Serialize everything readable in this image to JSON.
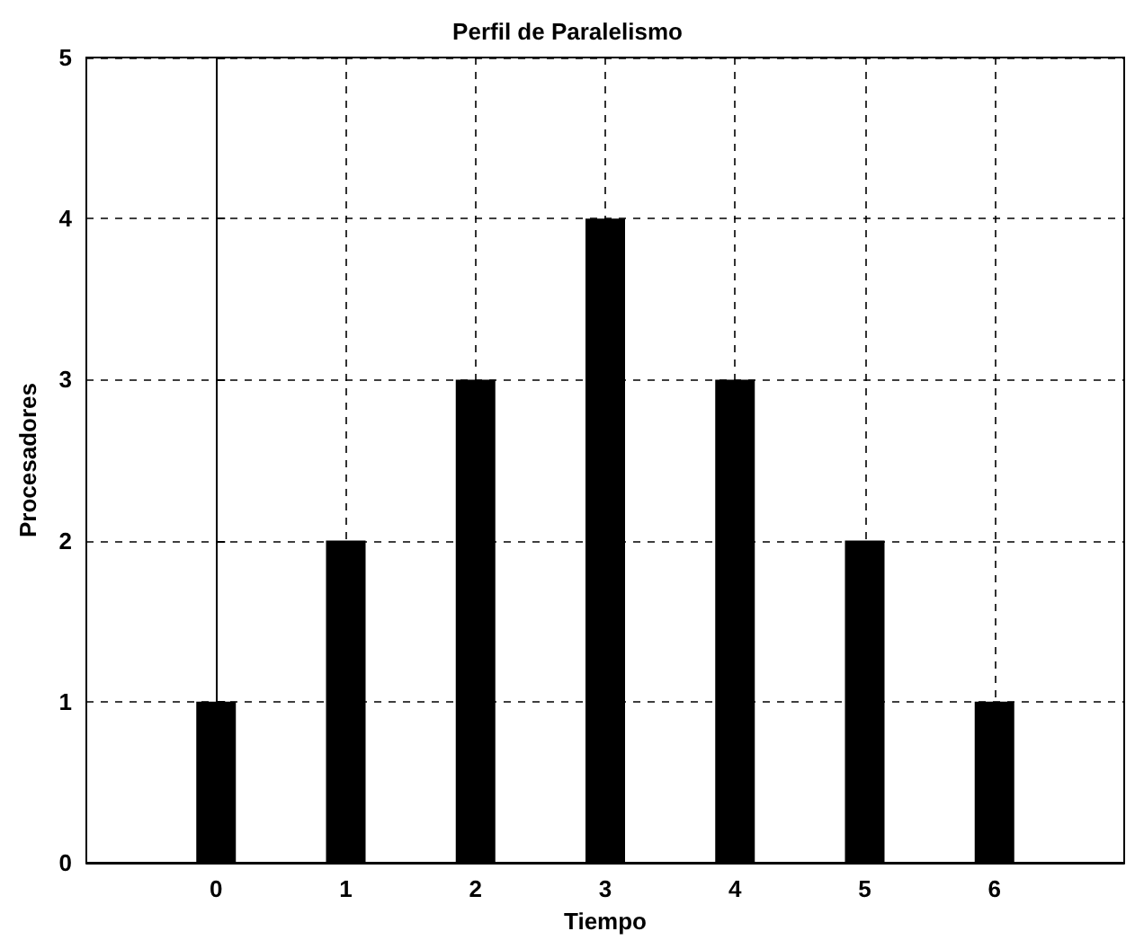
{
  "chart_data": {
    "type": "bar",
    "title": "Perfil de Paralelismo",
    "xlabel": "Tiempo",
    "ylabel": "Procesadores",
    "x": [
      0,
      1,
      2,
      3,
      4,
      5,
      6
    ],
    "values": [
      1,
      2,
      3,
      4,
      3,
      2,
      1
    ],
    "color": "#000000",
    "xlim": [
      -1,
      7
    ],
    "xticks": [
      0,
      1,
      2,
      3,
      4,
      5,
      6
    ],
    "ylim": [
      0,
      5
    ],
    "yticks": [
      0,
      1,
      2,
      3,
      4,
      5
    ],
    "grid": true
  }
}
